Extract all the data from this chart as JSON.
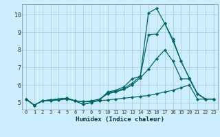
{
  "xlabel": "Humidex (Indice chaleur)",
  "background_color": "#cceeff",
  "line_color": "#006666",
  "grid_color": "#aacccc",
  "xlim": [
    -0.5,
    23.5
  ],
  "ylim": [
    4.6,
    10.6
  ],
  "xticks": [
    0,
    1,
    2,
    3,
    4,
    5,
    6,
    7,
    8,
    9,
    10,
    11,
    12,
    13,
    14,
    15,
    16,
    17,
    18,
    19,
    20,
    21,
    22,
    23
  ],
  "yticks": [
    5,
    6,
    7,
    8,
    9,
    10
  ],
  "series": [
    {
      "x": [
        0,
        1,
        2,
        3,
        4,
        5,
        6,
        7,
        8,
        9,
        10,
        11,
        12,
        13,
        14,
        15,
        16,
        17,
        18,
        19,
        20,
        21,
        22,
        23
      ],
      "y": [
        5.2,
        4.85,
        5.1,
        5.1,
        5.15,
        5.2,
        5.1,
        5.05,
        5.05,
        5.1,
        5.15,
        5.2,
        5.25,
        5.3,
        5.35,
        5.4,
        5.5,
        5.6,
        5.7,
        5.85,
        6.0,
        5.2,
        5.2,
        5.2
      ]
    },
    {
      "x": [
        0,
        1,
        2,
        3,
        4,
        5,
        6,
        7,
        8,
        9,
        10,
        11,
        12,
        13,
        14,
        15,
        16,
        17,
        18,
        19,
        20,
        21,
        22,
        23
      ],
      "y": [
        5.2,
        4.85,
        5.1,
        5.15,
        5.2,
        5.25,
        5.1,
        5.05,
        5.1,
        5.2,
        5.5,
        5.6,
        5.75,
        6.0,
        6.4,
        6.9,
        7.5,
        8.0,
        7.35,
        6.35,
        6.35,
        5.5,
        5.2,
        5.2
      ]
    },
    {
      "x": [
        0,
        1,
        2,
        3,
        4,
        5,
        6,
        7,
        8,
        9,
        10,
        11,
        12,
        13,
        14,
        15,
        16,
        17,
        18,
        19,
        20,
        21,
        22,
        23
      ],
      "y": [
        5.2,
        4.85,
        5.1,
        5.15,
        5.2,
        5.25,
        5.1,
        4.9,
        5.0,
        5.15,
        5.55,
        5.65,
        5.8,
        6.1,
        6.5,
        8.85,
        8.9,
        9.5,
        8.5,
        7.35,
        6.4,
        5.5,
        5.2,
        5.2
      ]
    },
    {
      "x": [
        0,
        1,
        2,
        3,
        4,
        5,
        6,
        7,
        8,
        9,
        10,
        11,
        12,
        13,
        14,
        15,
        16,
        17,
        18,
        19,
        20,
        21,
        22,
        23
      ],
      "y": [
        5.2,
        4.85,
        5.1,
        5.15,
        5.2,
        5.25,
        5.1,
        4.9,
        5.0,
        5.15,
        5.6,
        5.7,
        5.9,
        6.35,
        6.5,
        10.1,
        10.35,
        9.5,
        8.6,
        7.35,
        6.4,
        5.5,
        5.2,
        5.2
      ]
    }
  ]
}
